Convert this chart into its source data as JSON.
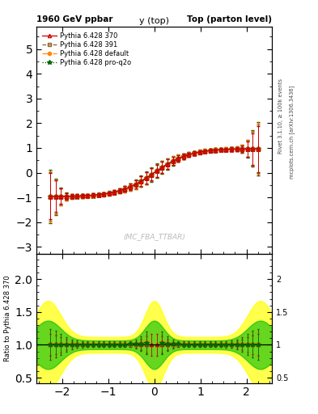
{
  "title_left": "1960 GeV ppbar",
  "title_right": "Top (parton level)",
  "center_title": "y (top)",
  "ylabel_ratio": "Ratio to Pythia 6.428 370",
  "right_label_top": "Rivet 3.1.10, ≥ 100k events",
  "right_label_bot": "mcplots.cern.ch [arXiv:1306.3436]",
  "watermark": "(MC_FBA_TTBAR)",
  "ylim_main": [
    -3.3,
    5.9
  ],
  "ylim_ratio": [
    0.42,
    2.38
  ],
  "xlim": [
    -2.55,
    2.55
  ],
  "xticks": [
    -2,
    -1,
    0,
    1,
    2
  ],
  "yticks_main": [
    -3,
    -2,
    -1,
    0,
    1,
    2,
    3,
    4,
    5
  ],
  "yticks_ratio": [
    0.5,
    1.0,
    1.5,
    2.0
  ],
  "series": [
    {
      "label": "Pythia 6.428 370",
      "color": "#cc0000",
      "marker": "^",
      "linestyle": "-",
      "linewidth": 1.0,
      "markersize": 3.5,
      "fillstyle": "none"
    },
    {
      "label": "Pythia 6.428 391",
      "color": "#886622",
      "marker": "s",
      "linestyle": "--",
      "linewidth": 1.0,
      "markersize": 3.5,
      "fillstyle": "none"
    },
    {
      "label": "Pythia 6.428 default",
      "color": "#ff8800",
      "marker": "o",
      "linestyle": "-.",
      "linewidth": 1.0,
      "markersize": 3.5,
      "fillstyle": "full"
    },
    {
      "label": "Pythia 6.428 pro-q2o",
      "color": "#006600",
      "marker": "*",
      "linestyle": ":",
      "linewidth": 1.0,
      "markersize": 4.5,
      "fillstyle": "full"
    }
  ],
  "band_yellow": "#ffff00",
  "band_green": "#00bb00",
  "band_yellow_alpha": 0.7,
  "band_green_alpha": 0.6
}
